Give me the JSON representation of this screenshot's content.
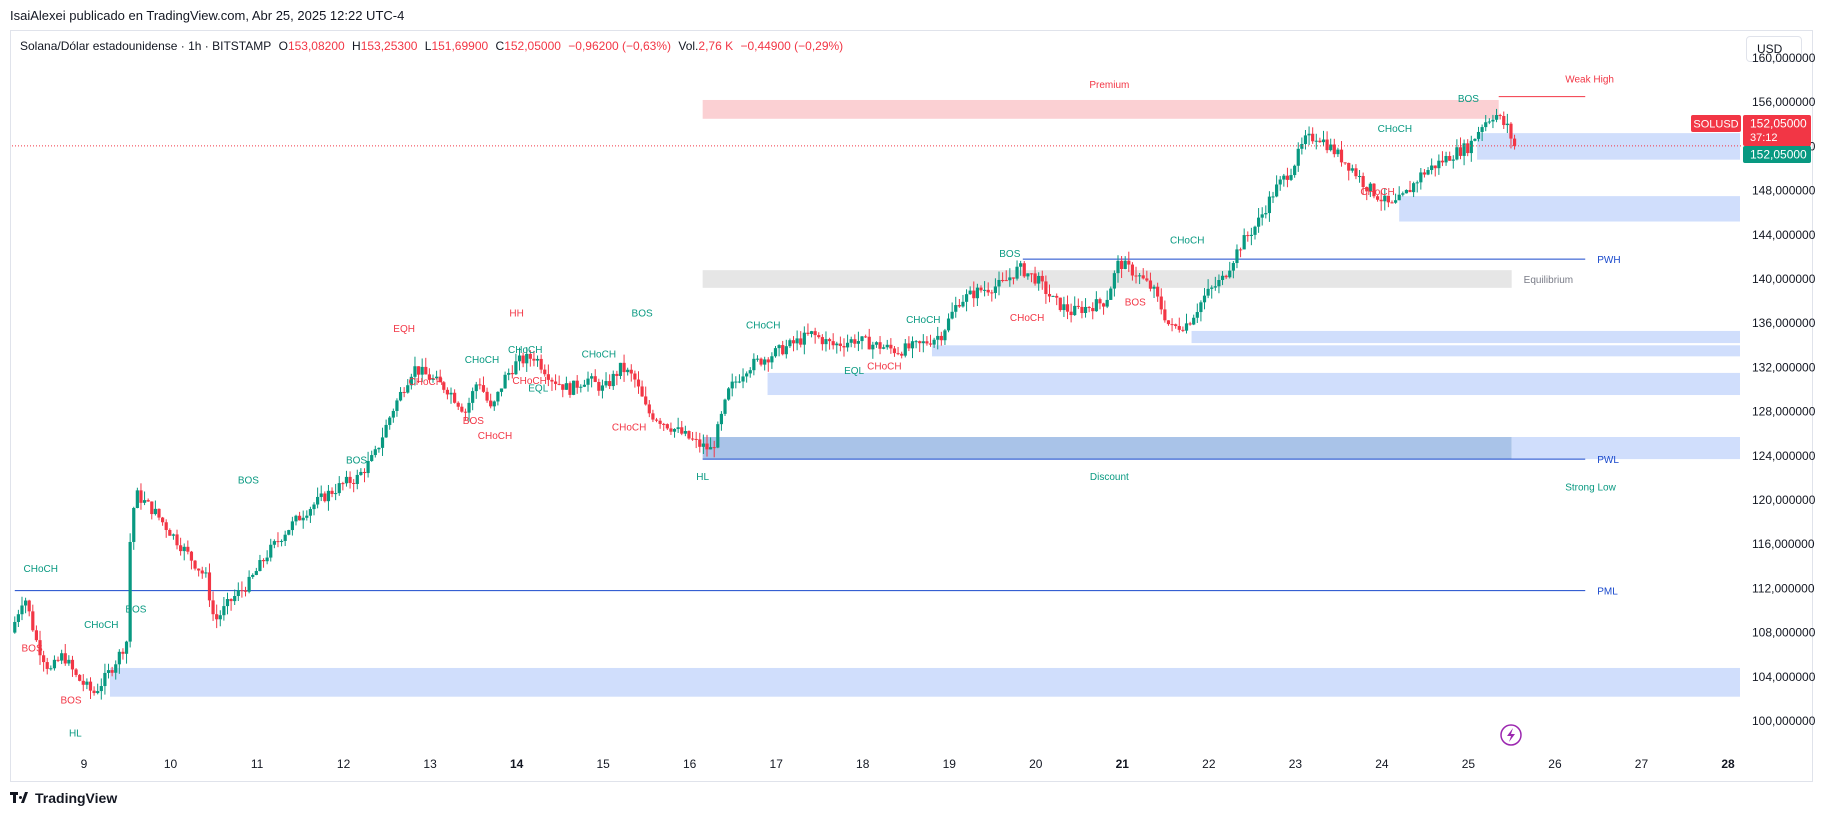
{
  "header": {
    "published": "IsaiAlexei publicado en TradingView.com, Abr 25, 2025 12:22 UTC-4"
  },
  "symbol_bar": {
    "name": "Solana/Dólar estadounidense · 1h · BITSTAMP",
    "o_label": "O",
    "o_value": "153,08200",
    "h_label": "H",
    "h_value": "153,25300",
    "l_label": "L",
    "l_value": "151,69900",
    "c_label": "C",
    "c_value": "152,05000",
    "change": "−0,96200 (−0,63%)",
    "vol_label": "Vol.",
    "vol_value": "2,76 K",
    "vol_change": "−0,44900 (−0,29%)"
  },
  "currency_button": "USD",
  "price_tags": {
    "ticker": "SOLUSD",
    "last_price": "152,05000",
    "countdown": "37:12",
    "bid_price": "152,05000"
  },
  "logo_text": "TradingView",
  "colors": {
    "up": "#089981",
    "down": "#f23645",
    "demand": "#c8d8fb",
    "supply": "#fbd0d3",
    "equilibrium": "#e6e6e6",
    "level_line": "#1848cc",
    "green_label": "#089981",
    "red_label": "#f23645"
  },
  "chart_data": {
    "type": "candlestick",
    "symbol": "SOLUSD",
    "timeframe": "1h",
    "y_range": [
      98,
      160
    ],
    "x_range_days": [
      8.2,
      28.2
    ],
    "y_ticks": [
      "100,000000",
      "104,000000",
      "108,000000",
      "112,000000",
      "116,000000",
      "120,000000",
      "124,000000",
      "128,000000",
      "132,000000",
      "136,000000",
      "140,000000",
      "144,000000",
      "148,000000",
      "152,000000",
      "156,000000",
      "160,000000"
    ],
    "x_ticks": [
      {
        "day": 9,
        "label": "9"
      },
      {
        "day": 10,
        "label": "10"
      },
      {
        "day": 11,
        "label": "11"
      },
      {
        "day": 12,
        "label": "12"
      },
      {
        "day": 13,
        "label": "13"
      },
      {
        "day": 14,
        "label": "14"
      },
      {
        "day": 15,
        "label": "15"
      },
      {
        "day": 16,
        "label": "16"
      },
      {
        "day": 17,
        "label": "17"
      },
      {
        "day": 18,
        "label": "18"
      },
      {
        "day": 19,
        "label": "19"
      },
      {
        "day": 20,
        "label": "20"
      },
      {
        "day": 21,
        "label": "21"
      },
      {
        "day": 22,
        "label": "22"
      },
      {
        "day": 23,
        "label": "23"
      },
      {
        "day": 24,
        "label": "24"
      },
      {
        "day": 25,
        "label": "25"
      },
      {
        "day": 26,
        "label": "26"
      },
      {
        "day": 27,
        "label": "27"
      },
      {
        "day": 28,
        "label": "28"
      }
    ],
    "price_path": [
      [
        8.2,
        108
      ],
      [
        8.35,
        111.5
      ],
      [
        8.5,
        107
      ],
      [
        8.65,
        104.5
      ],
      [
        8.8,
        106
      ],
      [
        8.95,
        104
      ],
      [
        9.15,
        102.5
      ],
      [
        9.3,
        104
      ],
      [
        9.45,
        106
      ],
      [
        9.55,
        107.5
      ],
      [
        9.58,
        118
      ],
      [
        9.65,
        120.5
      ],
      [
        9.85,
        119
      ],
      [
        10.05,
        117
      ],
      [
        10.25,
        115
      ],
      [
        10.45,
        113
      ],
      [
        10.55,
        109
      ],
      [
        10.75,
        111
      ],
      [
        10.95,
        112.5
      ],
      [
        11.15,
        115
      ],
      [
        11.35,
        117
      ],
      [
        11.6,
        119
      ],
      [
        11.85,
        120.5
      ],
      [
        12.05,
        121.5
      ],
      [
        12.2,
        122
      ],
      [
        12.4,
        124
      ],
      [
        12.6,
        128
      ],
      [
        12.85,
        132
      ],
      [
        13.05,
        131
      ],
      [
        13.25,
        130
      ],
      [
        13.45,
        128
      ],
      [
        13.6,
        131
      ],
      [
        13.75,
        128
      ],
      [
        13.9,
        131
      ],
      [
        14.05,
        132.5
      ],
      [
        14.25,
        133
      ],
      [
        14.45,
        131
      ],
      [
        14.65,
        130
      ],
      [
        14.85,
        131
      ],
      [
        15.05,
        130
      ],
      [
        15.25,
        132
      ],
      [
        15.4,
        131
      ],
      [
        15.55,
        128
      ],
      [
        15.75,
        127
      ],
      [
        15.95,
        126
      ],
      [
        16.15,
        125
      ],
      [
        16.3,
        124.5
      ],
      [
        16.5,
        130
      ],
      [
        16.7,
        132
      ],
      [
        16.95,
        133
      ],
      [
        17.2,
        134
      ],
      [
        17.45,
        135
      ],
      [
        17.7,
        134
      ],
      [
        17.95,
        134.5
      ],
      [
        18.2,
        134
      ],
      [
        18.45,
        133.5
      ],
      [
        18.7,
        134
      ],
      [
        18.95,
        135
      ],
      [
        19.15,
        138
      ],
      [
        19.4,
        139
      ],
      [
        19.65,
        139.5
      ],
      [
        19.85,
        141
      ],
      [
        20.05,
        140
      ],
      [
        20.25,
        138
      ],
      [
        20.45,
        137
      ],
      [
        20.65,
        137.5
      ],
      [
        20.85,
        138
      ],
      [
        21.0,
        141.5
      ],
      [
        21.2,
        140.5
      ],
      [
        21.4,
        139
      ],
      [
        21.6,
        135.5
      ],
      [
        21.8,
        136
      ],
      [
        22.0,
        138.5
      ],
      [
        22.2,
        140
      ],
      [
        22.4,
        143
      ],
      [
        22.6,
        145
      ],
      [
        22.8,
        148
      ],
      [
        23.0,
        150
      ],
      [
        23.15,
        152.5
      ],
      [
        23.3,
        153
      ],
      [
        23.5,
        151.5
      ],
      [
        23.7,
        150
      ],
      [
        23.85,
        148.5
      ],
      [
        24.0,
        147.5
      ],
      [
        24.15,
        146.5
      ],
      [
        24.3,
        147.5
      ],
      [
        24.5,
        149.5
      ],
      [
        24.7,
        150.5
      ],
      [
        24.9,
        151.5
      ],
      [
        25.05,
        152
      ],
      [
        25.2,
        154
      ],
      [
        25.35,
        155
      ],
      [
        25.45,
        154
      ],
      [
        25.52,
        153.5
      ],
      [
        25.55,
        152.05
      ]
    ],
    "zones": [
      {
        "type": "supply",
        "label": "Premium",
        "x0": 16.15,
        "x1": 25.35,
        "y0": 154.5,
        "y1": 156.2
      },
      {
        "type": "equilibrium",
        "label": "Equilibrium",
        "x0": 16.15,
        "x1": 25.5,
        "y0": 139.2,
        "y1": 140.8
      },
      {
        "type": "discount",
        "label": "Discount",
        "x0": 16.15,
        "x1": 25.5,
        "y0": 123.7,
        "y1": 125.7
      },
      {
        "type": "demand",
        "x0": 25.5,
        "x1": 28.15,
        "y0": 123.7,
        "y1": 125.7
      },
      {
        "type": "demand",
        "x0": 9.3,
        "x1": 28.15,
        "y0": 102.2,
        "y1": 104.8
      },
      {
        "type": "demand",
        "x0": 16.9,
        "x1": 28.15,
        "y0": 129.5,
        "y1": 131.5
      },
      {
        "type": "demand",
        "x0": 18.8,
        "x1": 28.15,
        "y0": 133.0,
        "y1": 134.0
      },
      {
        "type": "demand",
        "x0": 21.8,
        "x1": 28.15,
        "y0": 134.2,
        "y1": 135.3
      },
      {
        "type": "demand",
        "x0": 24.2,
        "x1": 28.15,
        "y0": 145.2,
        "y1": 147.5
      },
      {
        "type": "demand",
        "x0": 25.1,
        "x1": 28.15,
        "y0": 150.8,
        "y1": 153.2
      }
    ],
    "levels": [
      {
        "label": "PWH",
        "value": 141.8,
        "x0": 19.85,
        "x1": 26.35
      },
      {
        "label": "PWL",
        "value": 123.7,
        "x0": 16.15,
        "x1": 26.35
      },
      {
        "label": "PML",
        "value": 111.8,
        "x0": 8.2,
        "x1": 26.35
      },
      {
        "label": "Weak High",
        "value": 156.5,
        "x0": 25.35,
        "x1": 26.35
      },
      {
        "label": "Strong Low",
        "value": 122.5,
        "x0": 26.35,
        "x1": 26.35
      }
    ],
    "annotations": [
      {
        "text": "CHoCH",
        "day": 8.5,
        "price": 113.5,
        "color": "green"
      },
      {
        "text": "BOS",
        "day": 8.4,
        "price": 106.3,
        "color": "red"
      },
      {
        "text": "BOS",
        "day": 8.85,
        "price": 101.6,
        "color": "red"
      },
      {
        "text": "HL",
        "day": 8.9,
        "price": 98.6,
        "color": "green"
      },
      {
        "text": "CHoCH",
        "day": 9.2,
        "price": 108.4,
        "color": "green"
      },
      {
        "text": "BOS",
        "day": 9.6,
        "price": 109.8,
        "color": "green"
      },
      {
        "text": "BOS",
        "day": 10.9,
        "price": 121.5,
        "color": "green"
      },
      {
        "text": "BOS",
        "day": 12.15,
        "price": 123.3,
        "color": "green"
      },
      {
        "text": "EQH",
        "day": 12.7,
        "price": 135.2,
        "color": "red"
      },
      {
        "text": "CHoCH",
        "day": 12.95,
        "price": 130.4,
        "color": "red"
      },
      {
        "text": "CHoCH",
        "day": 13.6,
        "price": 132.4,
        "color": "green"
      },
      {
        "text": "BOS",
        "day": 13.5,
        "price": 126.9,
        "color": "red"
      },
      {
        "text": "CHoCH",
        "day": 13.75,
        "price": 125.5,
        "color": "red"
      },
      {
        "text": "CHoCH",
        "day": 14.1,
        "price": 133.3,
        "color": "green"
      },
      {
        "text": "HH",
        "day": 14.0,
        "price": 136.6,
        "color": "red"
      },
      {
        "text": "EQL",
        "day": 14.25,
        "price": 129.8,
        "color": "green"
      },
      {
        "text": "CHoCH",
        "day": 14.15,
        "price": 130.5,
        "color": "red"
      },
      {
        "text": "CHoCH",
        "day": 14.95,
        "price": 132.9,
        "color": "green"
      },
      {
        "text": "CHoCH",
        "day": 15.3,
        "price": 126.3,
        "color": "red"
      },
      {
        "text": "BOS",
        "day": 15.45,
        "price": 136.6,
        "color": "green"
      },
      {
        "text": "HL",
        "day": 16.15,
        "price": 121.8,
        "color": "green"
      },
      {
        "text": "CHoCH",
        "day": 16.85,
        "price": 135.5,
        "color": "green"
      },
      {
        "text": "EQL",
        "day": 17.9,
        "price": 131.4,
        "color": "green"
      },
      {
        "text": "CHoCH",
        "day": 18.25,
        "price": 131.8,
        "color": "red"
      },
      {
        "text": "CHoCH",
        "day": 18.7,
        "price": 136.0,
        "color": "green"
      },
      {
        "text": "BOS",
        "day": 19.7,
        "price": 142.0,
        "color": "green"
      },
      {
        "text": "CHoCH",
        "day": 19.9,
        "price": 136.2,
        "color": "red"
      },
      {
        "text": "BOS",
        "day": 21.15,
        "price": 137.6,
        "color": "red"
      },
      {
        "text": "CHoCH",
        "day": 21.75,
        "price": 143.2,
        "color": "green"
      },
      {
        "text": "CHoCH",
        "day": 24.15,
        "price": 153.3,
        "color": "green"
      },
      {
        "text": "CHoCH",
        "day": 23.95,
        "price": 147.6,
        "color": "red"
      },
      {
        "text": "BOS",
        "day": 25.0,
        "price": 156.0,
        "color": "green"
      },
      {
        "text": "Premium",
        "day": 20.85,
        "price": 157.3,
        "color": "red"
      },
      {
        "text": "Discount",
        "day": 20.85,
        "price": 121.8,
        "color": "green"
      }
    ],
    "last_price": 152.05
  }
}
